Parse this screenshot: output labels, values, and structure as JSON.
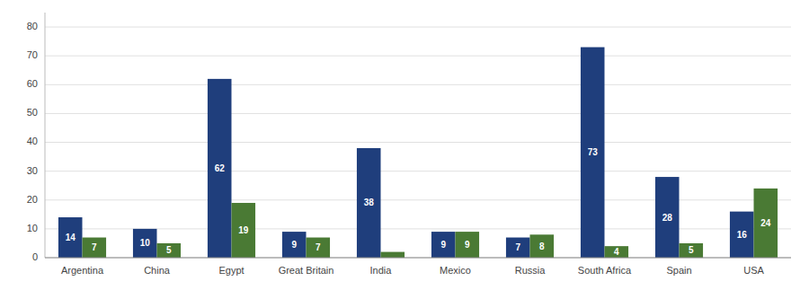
{
  "chart_data": {
    "type": "bar",
    "categories": [
      "Argentina",
      "China",
      "Egypt",
      "Great Britain",
      "India",
      "Mexico",
      "Russia",
      "South Africa",
      "Spain",
      "USA"
    ],
    "series": [
      {
        "color": "#1F3E7C",
        "values": [
          14,
          10,
          62,
          9,
          38,
          9,
          7,
          73,
          28,
          16
        ]
      },
      {
        "color": "#4A7A34",
        "values": [
          7,
          5,
          19,
          7,
          2,
          9,
          8,
          4,
          5,
          24
        ],
        "value_labels": [
          "7",
          "5",
          "19",
          "7",
          null,
          "9",
          "8",
          "4",
          "5",
          "24"
        ]
      }
    ],
    "ylim": [
      0,
      85
    ],
    "yticks": [
      0,
      10,
      20,
      30,
      40,
      50,
      60,
      70,
      80
    ],
    "grid": true,
    "data_labels": true
  }
}
